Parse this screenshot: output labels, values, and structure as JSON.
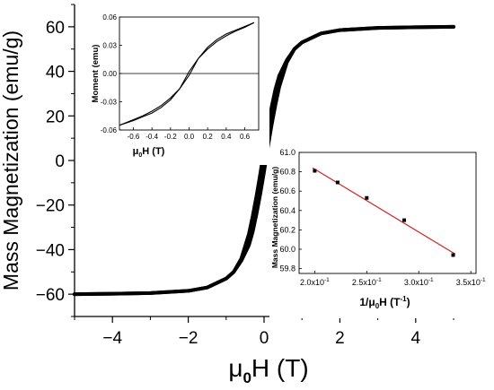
{
  "chart_data": [
    {
      "name": "main",
      "type": "line",
      "title": "",
      "xlabel": {
        "main": "μ",
        "sub": "0",
        "rest": "H (T)"
      },
      "ylabel": "Mass Magnetization (emu/g)",
      "xlim": [
        -5,
        5
      ],
      "ylim": [
        -70,
        70
      ],
      "xticks": [
        -4,
        -2,
        0,
        2,
        4
      ],
      "xtick_labels": [
        "−4",
        "−2",
        "0",
        "2",
        "4"
      ],
      "yticks": [
        -60,
        -40,
        -20,
        0,
        20,
        40,
        60
      ],
      "ytick_labels": [
        "−60",
        "−40",
        "−20",
        "0",
        "20",
        "40",
        "60"
      ],
      "grid": false,
      "series": [
        {
          "branch": "descending",
          "x": [
            5,
            4,
            3,
            2,
            1.5,
            1.0,
            0.8,
            0.6,
            0.4,
            0.3,
            0.2,
            0.1,
            0.0,
            -0.1,
            -0.2,
            -0.3,
            -0.4,
            -0.6,
            -0.8,
            -1.0,
            -1.5,
            -2,
            -3,
            -4,
            -5
          ],
          "y": [
            60,
            59.8,
            59.5,
            58.5,
            57,
            53,
            50,
            44,
            33,
            25,
            16,
            6,
            -5,
            -15,
            -24,
            -32,
            -38,
            -45,
            -50,
            -53,
            -57,
            -58.5,
            -59.5,
            -59.8,
            -60
          ]
        },
        {
          "branch": "ascending",
          "x": [
            -5,
            -4,
            -3,
            -2,
            -1.5,
            -1.0,
            -0.8,
            -0.6,
            -0.4,
            -0.3,
            -0.2,
            -0.1,
            0.0,
            0.1,
            0.2,
            0.3,
            0.4,
            0.6,
            0.8,
            1.0,
            1.5,
            2,
            3,
            4,
            5
          ],
          "y": [
            -60,
            -59.8,
            -59.5,
            -58.5,
            -57,
            -53,
            -50,
            -44,
            -33,
            -25,
            -16,
            -6,
            5,
            15,
            24,
            32,
            38,
            45,
            50,
            53,
            57,
            58.5,
            59.5,
            59.8,
            60
          ]
        }
      ]
    },
    {
      "name": "inset-hysteresis",
      "type": "line",
      "xlabel": {
        "main": "μ",
        "sub": "0",
        "rest": "H (T)"
      },
      "ylabel": "Moment (emu)",
      "xlim": [
        -0.75,
        0.75
      ],
      "ylim": [
        -0.06,
        0.06
      ],
      "xticks": [
        -0.6,
        -0.4,
        -0.2,
        0.0,
        0.2,
        0.4,
        0.6
      ],
      "xtick_labels": [
        "-0.6",
        "-0.4",
        "-0.2",
        "0.0",
        "0.2",
        "0.4",
        "0.6"
      ],
      "yticks": [
        -0.06,
        -0.03,
        0.0,
        0.03,
        0.06
      ],
      "ytick_labels": [
        "-0.06",
        "-0.03",
        "0.00",
        "0.03",
        "0.06"
      ],
      "series": [
        {
          "branch": "descending",
          "x": [
            0.7,
            0.6,
            0.5,
            0.4,
            0.3,
            0.2,
            0.1,
            0.0,
            -0.05,
            -0.1,
            -0.2,
            -0.3,
            -0.4,
            -0.5,
            -0.6,
            -0.7,
            -0.75
          ],
          "y": [
            0.054,
            0.05,
            0.046,
            0.042,
            0.036,
            0.028,
            0.016,
            0.002,
            -0.007,
            -0.016,
            -0.026,
            -0.034,
            -0.04,
            -0.045,
            -0.049,
            -0.053,
            -0.055
          ]
        },
        {
          "branch": "ascending",
          "x": [
            -0.75,
            -0.6,
            -0.5,
            -0.4,
            -0.3,
            -0.2,
            -0.1,
            0.0,
            0.05,
            0.1,
            0.2,
            0.3,
            0.4,
            0.5,
            0.6,
            0.7
          ],
          "y": [
            -0.055,
            -0.05,
            -0.046,
            -0.042,
            -0.036,
            -0.028,
            -0.016,
            -0.002,
            0.007,
            0.016,
            0.026,
            0.034,
            0.04,
            0.045,
            0.049,
            0.054
          ]
        }
      ]
    },
    {
      "name": "inset-linear-fit",
      "type": "scatter",
      "xlabel": {
        "main": "1/μ",
        "sub": "0",
        "rest": "H (T",
        "sup": "-1",
        "close": ")"
      },
      "ylabel": "Mass Magnetization (emu/g)",
      "xlim": [
        0.185,
        0.355
      ],
      "ylim": [
        59.75,
        61.0
      ],
      "xticks": [
        0.2,
        0.25,
        0.3,
        0.35
      ],
      "xtick_labels": [
        {
          "base": "2.0x10",
          "sup": "-1"
        },
        {
          "base": "2.5x10",
          "sup": "-1"
        },
        {
          "base": "3.0x10",
          "sup": "-1"
        },
        {
          "base": "3.5x10",
          "sup": "-1"
        }
      ],
      "yticks": [
        59.8,
        60.0,
        60.2,
        60.4,
        60.6,
        60.8,
        61.0
      ],
      "ytick_labels": [
        "59.8",
        "60.0",
        "60.2",
        "60.4",
        "60.6",
        "60.8",
        "61.0"
      ],
      "points": {
        "x": [
          0.2,
          0.222,
          0.25,
          0.286,
          0.333
        ],
        "y": [
          60.81,
          60.69,
          60.53,
          60.3,
          59.94
        ]
      },
      "fit": {
        "x": [
          0.198,
          0.335
        ],
        "y": [
          60.84,
          59.95
        ],
        "color": "#d62020"
      }
    }
  ]
}
